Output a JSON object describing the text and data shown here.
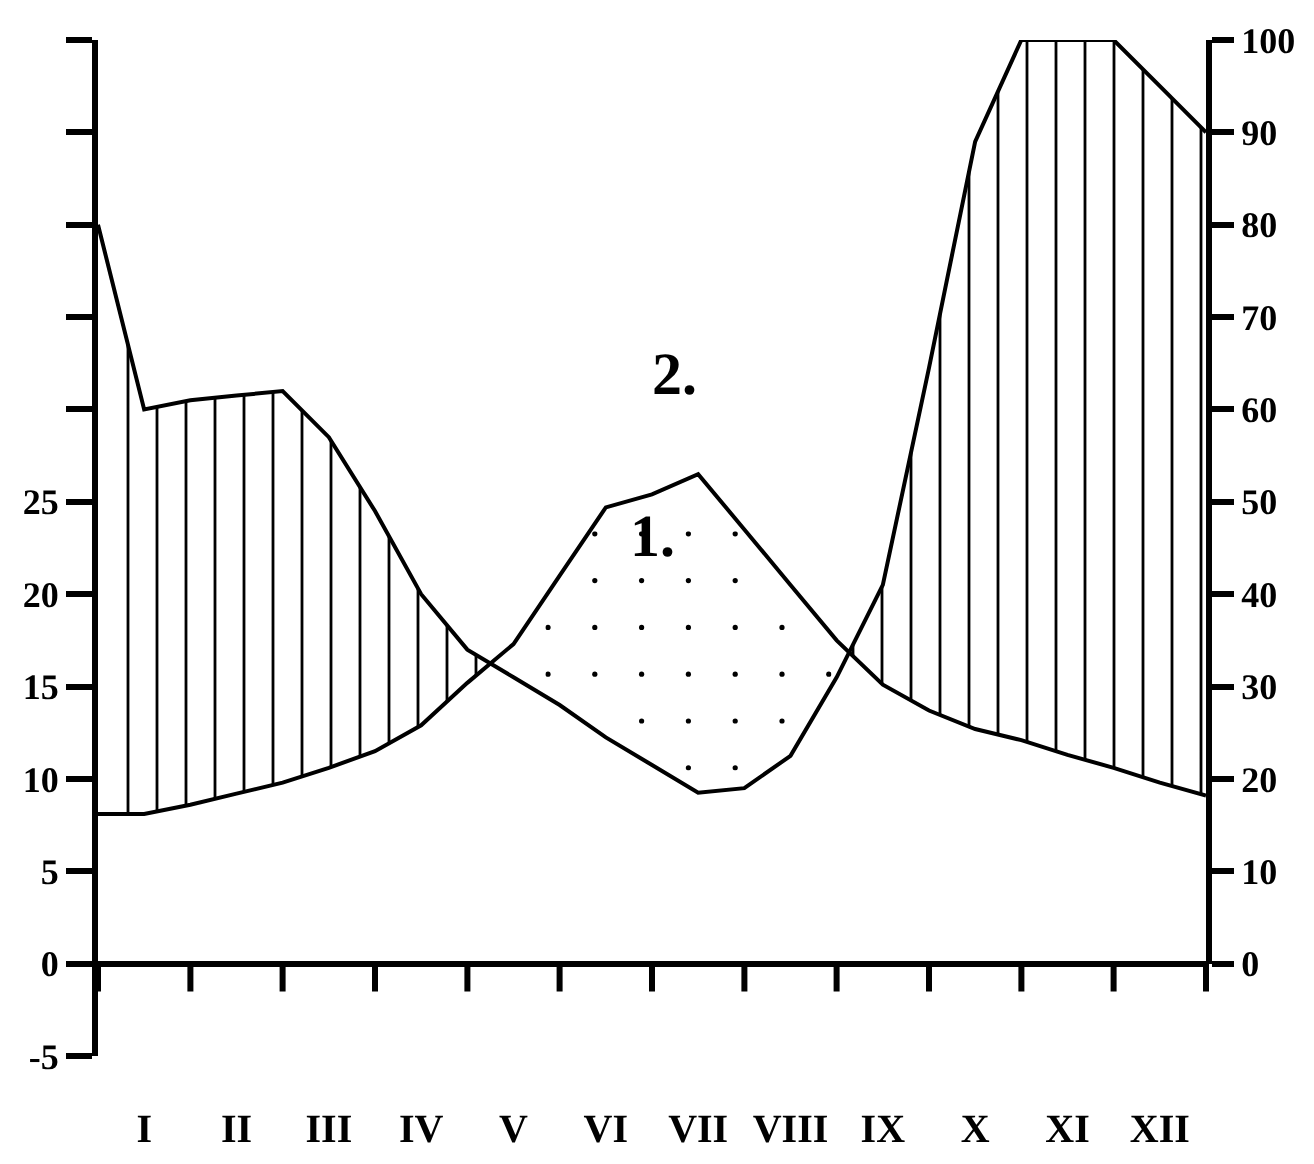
{
  "chart_data": {
    "type": "line",
    "categories": [
      null,
      "I",
      null,
      "II",
      null,
      "III",
      null,
      "IV",
      null,
      "V",
      null,
      "VI",
      null,
      "VII",
      null,
      "VIII",
      null,
      "IX",
      null,
      "X",
      null,
      "XI",
      null,
      "XII",
      null
    ],
    "ylim": [
      -5,
      50
    ],
    "yticks": [
      -5,
      0,
      5,
      10,
      15,
      20,
      25,
      {
        "value": 30,
        "label": null
      },
      {
        "value": 35,
        "label": null
      },
      {
        "value": 40,
        "label": null
      },
      {
        "value": 45,
        "label": null
      },
      {
        "value": 50,
        "label": null
      }
    ],
    "y2lim": [
      0,
      100
    ],
    "y2ticks": [
      0,
      10,
      20,
      30,
      40,
      50,
      60,
      70,
      80,
      90,
      100
    ],
    "series": [
      {
        "color": "#000000",
        "values": [
          8.1,
          8.1,
          8.6,
          9.2,
          9.8,
          10.6,
          11.5,
          12.9,
          15.2,
          17.3,
          21,
          24.7,
          25.4,
          26.5,
          23.5,
          20.5,
          17.5,
          15.1,
          13.7,
          12.7,
          12.1,
          11.3,
          10.6,
          9.8,
          9.1
        ]
      },
      {
        "color": "#000000",
        "axis": "y2",
        "values": [
          80,
          60,
          61,
          61.5,
          62,
          57,
          49,
          40,
          34,
          31,
          28,
          24.5,
          21.5,
          18.5,
          19,
          22.5,
          31,
          41,
          64.5,
          89,
          100,
          100,
          100,
          95,
          90
        ]
      }
    ],
    "annotations": [
      "1.",
      "2."
    ]
  }
}
